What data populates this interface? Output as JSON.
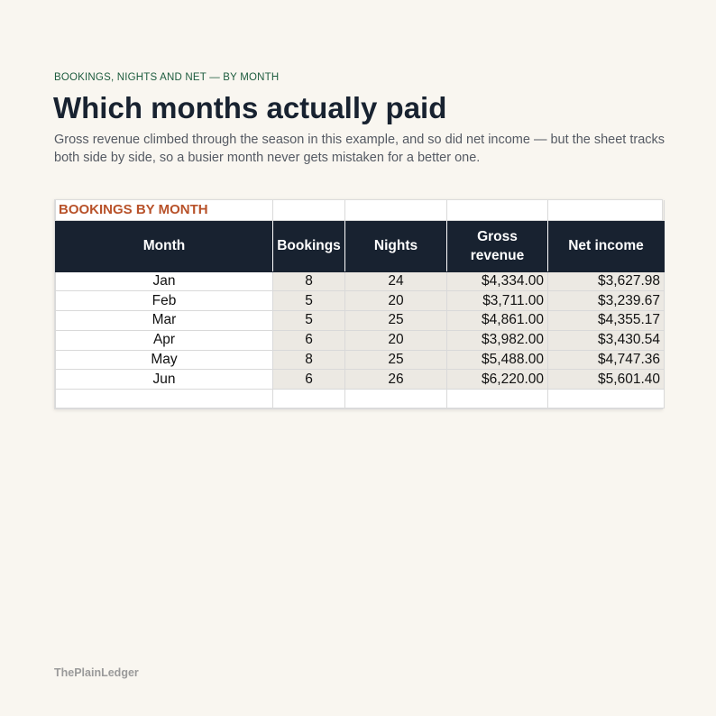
{
  "header": {
    "eyebrow": "BOOKINGS, NIGHTS AND NET — BY MONTH",
    "title": "Which months actually paid",
    "subtitle": "Gross revenue climbed through the season in this example, and so did net income — but the sheet tracks both side by side, so a busier month never gets mistaken for a better one."
  },
  "sheet": {
    "title": "BOOKINGS BY MONTH",
    "columns": [
      "Month",
      "Bookings",
      "Nights",
      "Gross revenue",
      "Net income"
    ],
    "rows": [
      {
        "month": "Jan",
        "bookings": "8",
        "nights": "24",
        "gross": "$4,334.00",
        "net": "$3,627.98"
      },
      {
        "month": "Feb",
        "bookings": "5",
        "nights": "20",
        "gross": "$3,711.00",
        "net": "$3,239.67"
      },
      {
        "month": "Mar",
        "bookings": "5",
        "nights": "25",
        "gross": "$4,861.00",
        "net": "$4,355.17"
      },
      {
        "month": "Apr",
        "bookings": "6",
        "nights": "20",
        "gross": "$3,982.00",
        "net": "$3,430.54"
      },
      {
        "month": "May",
        "bookings": "8",
        "nights": "25",
        "gross": "$5,488.00",
        "net": "$4,747.36"
      },
      {
        "month": "Jun",
        "bookings": "6",
        "nights": "26",
        "gross": "$6,220.00",
        "net": "$5,601.40"
      }
    ],
    "colors": {
      "header_bg": "#182230",
      "title_color": "#b8522a",
      "shaded_cell": "#ece9e3"
    }
  },
  "footer": {
    "brand": "ThePlainLedger"
  }
}
